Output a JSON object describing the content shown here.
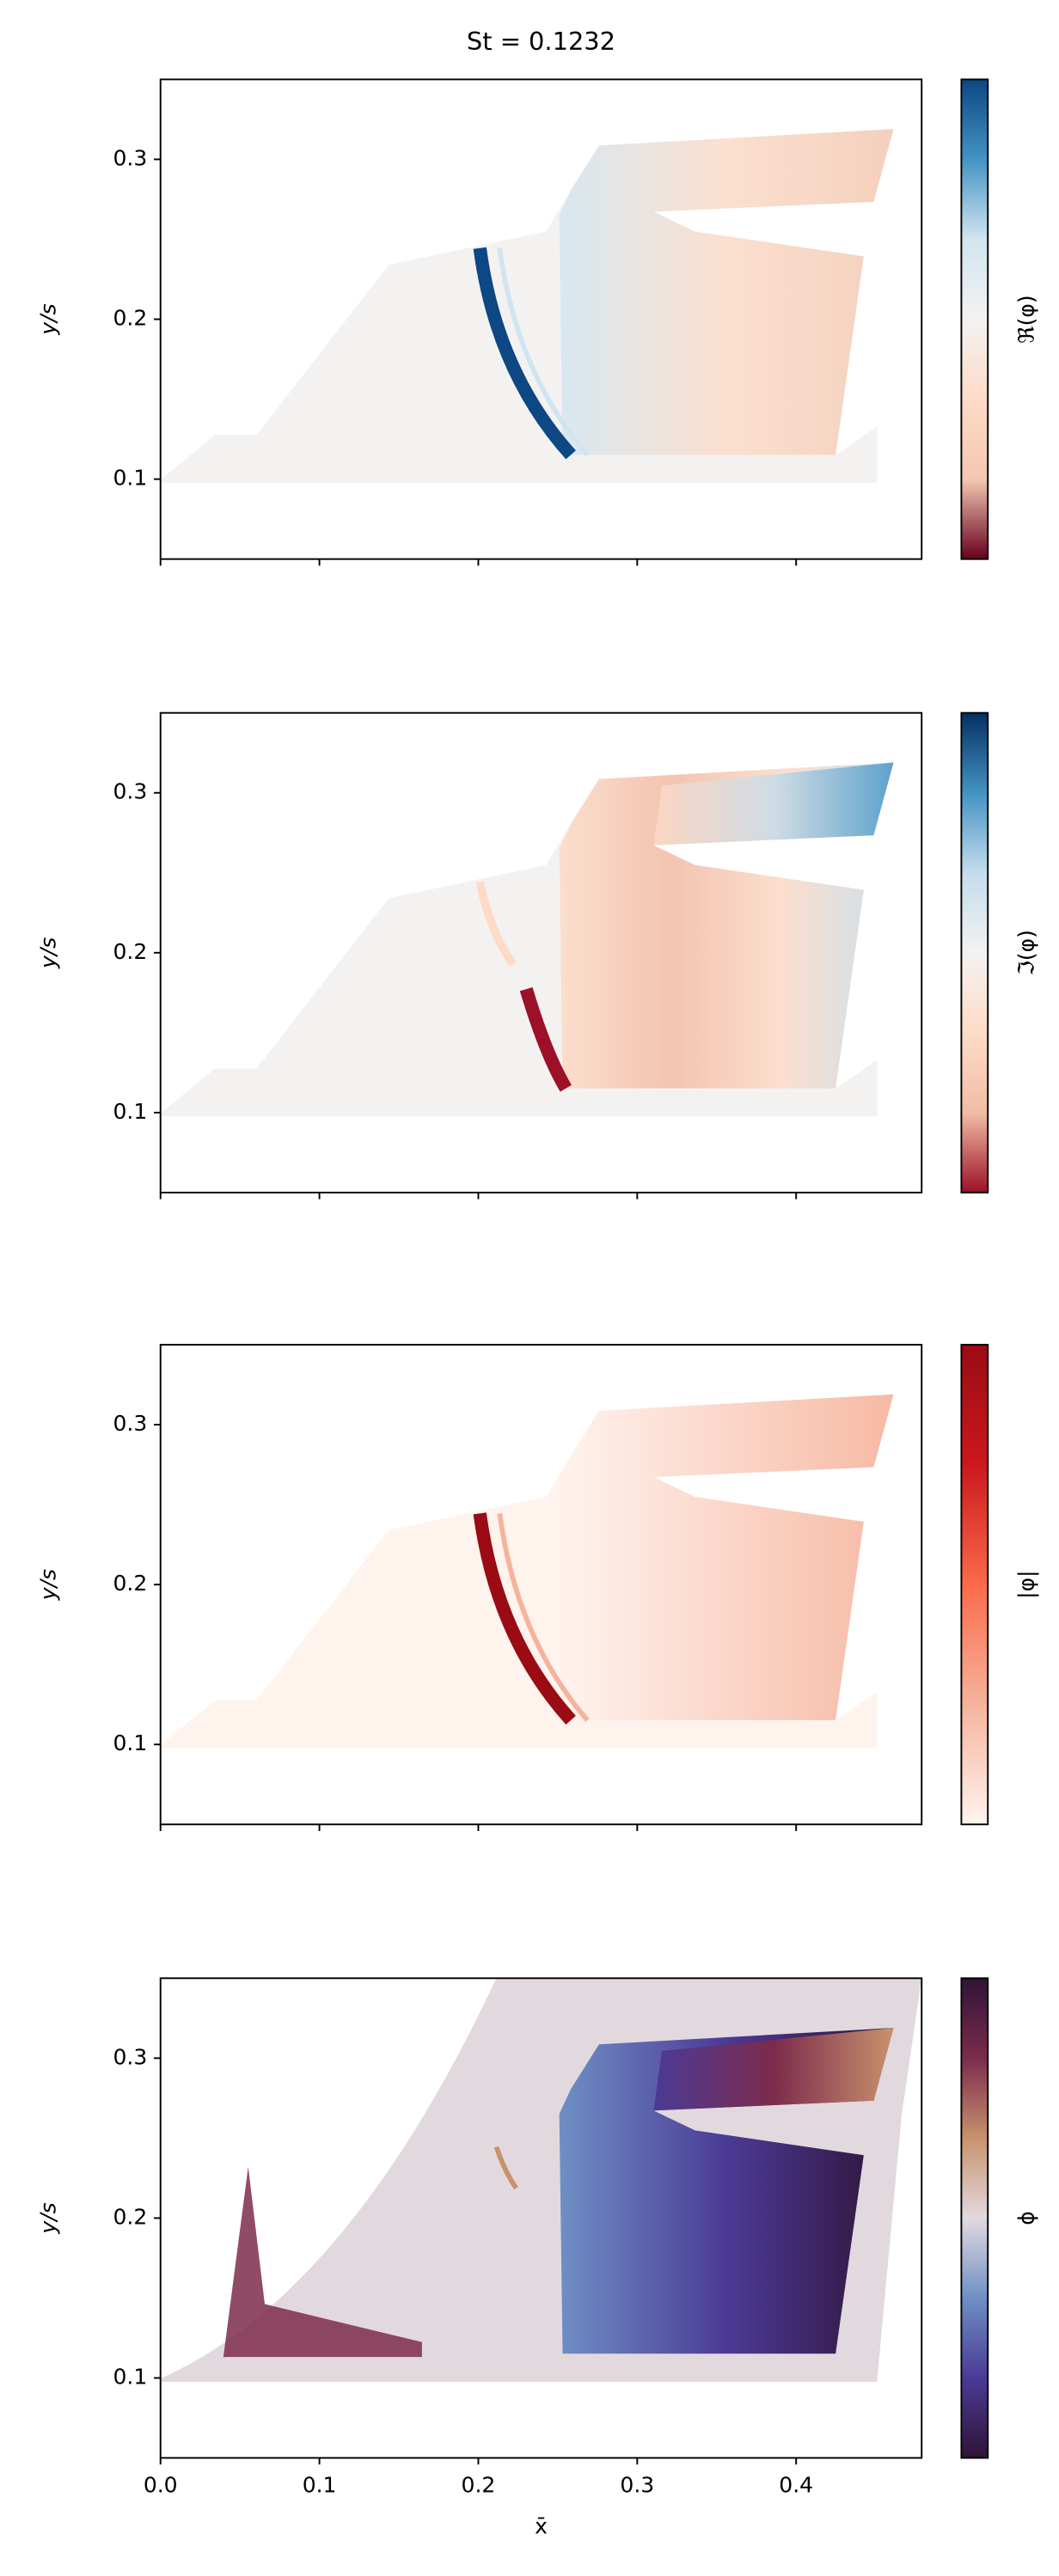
{
  "chart_data": [
    {
      "type": "field",
      "title": "St = 0.1232",
      "ylabel": "y/s",
      "colorbar_label": "ℜ(φ)",
      "colormap": [
        "#67001f",
        "#f4c7b0",
        "#fddbc7",
        "#f4f2f1",
        "#d1e5f0",
        "#4393c3",
        "#0d4784"
      ],
      "ylim": [
        0.05,
        0.35
      ],
      "yticks": [
        0.1,
        0.2,
        0.3
      ]
    },
    {
      "type": "field",
      "ylabel": "y/s",
      "colorbar_label": "ℑ(φ)",
      "colormap": [
        "#9c1127",
        "#f2bca5",
        "#fddbc7",
        "#f4f2f1",
        "#c4dcec",
        "#4393c3",
        "#053061"
      ],
      "ylim": [
        0.05,
        0.35
      ],
      "yticks": [
        0.1,
        0.2,
        0.3
      ]
    },
    {
      "type": "field",
      "ylabel": "y/s",
      "colorbar_label": "|φ|",
      "colormap": [
        "#fff3ee",
        "#f6b39c",
        "#fb6a4a",
        "#cb181d",
        "#9b0b14"
      ],
      "ylim": [
        0.05,
        0.35
      ],
      "yticks": [
        0.1,
        0.2,
        0.3
      ]
    },
    {
      "type": "field",
      "ylabel": "y/s",
      "xlabel": "x̄",
      "colorbar_label": "ϕ",
      "colormap": [
        "#2f1436",
        "#4b3a96",
        "#6f8fc4",
        "#e2d9df",
        "#c8926d",
        "#7c2b4c",
        "#2f1436"
      ],
      "xlim": [
        0,
        0.479
      ],
      "xticks": [
        {
          "value": 0,
          "label": "0.0"
        },
        0.1,
        0.2,
        0.3,
        0.4
      ],
      "ylim": [
        0.05,
        0.35
      ],
      "yticks": [
        0.1,
        0.2,
        0.3
      ]
    }
  ]
}
